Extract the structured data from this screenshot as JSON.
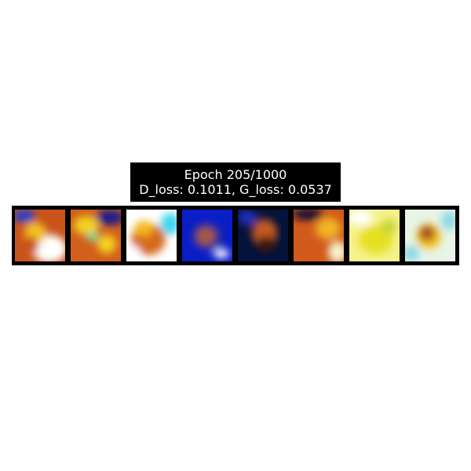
{
  "title": {
    "line1": "Epoch 205/1000",
    "line2": "D_loss: 0.1011, G_loss: 0.0537"
  },
  "samples": [
    {
      "name": "generated-sample-1",
      "colors": [
        "#c9531a",
        "#ffffff",
        "#1c3fd8",
        "#f2c41e"
      ]
    },
    {
      "name": "generated-sample-2",
      "colors": [
        "#d2601d",
        "#f4d21a",
        "#7ae0a0",
        "#1b1b8a"
      ]
    },
    {
      "name": "generated-sample-3",
      "colors": [
        "#ffffff",
        "#d56a1c",
        "#f2b81c",
        "#3fd6ee"
      ]
    },
    {
      "name": "generated-sample-4",
      "colors": [
        "#0a1ec8",
        "#1a2a9a",
        "#a65a3a",
        "#ffffff"
      ]
    },
    {
      "name": "generated-sample-5",
      "colors": [
        "#05123a",
        "#1b2fb8",
        "#c55a24",
        "#3a1208"
      ]
    },
    {
      "name": "generated-sample-6",
      "colors": [
        "#1a1030",
        "#d15a1a",
        "#f0b428",
        "#f6f2d0"
      ]
    },
    {
      "name": "generated-sample-7",
      "colors": [
        "#f6f18a",
        "#ffffff",
        "#e6e022",
        "#c8d43a"
      ]
    },
    {
      "name": "generated-sample-8",
      "colors": [
        "#e8f4e6",
        "#a84a1e",
        "#f2c21e",
        "#8ad8e6"
      ]
    }
  ]
}
